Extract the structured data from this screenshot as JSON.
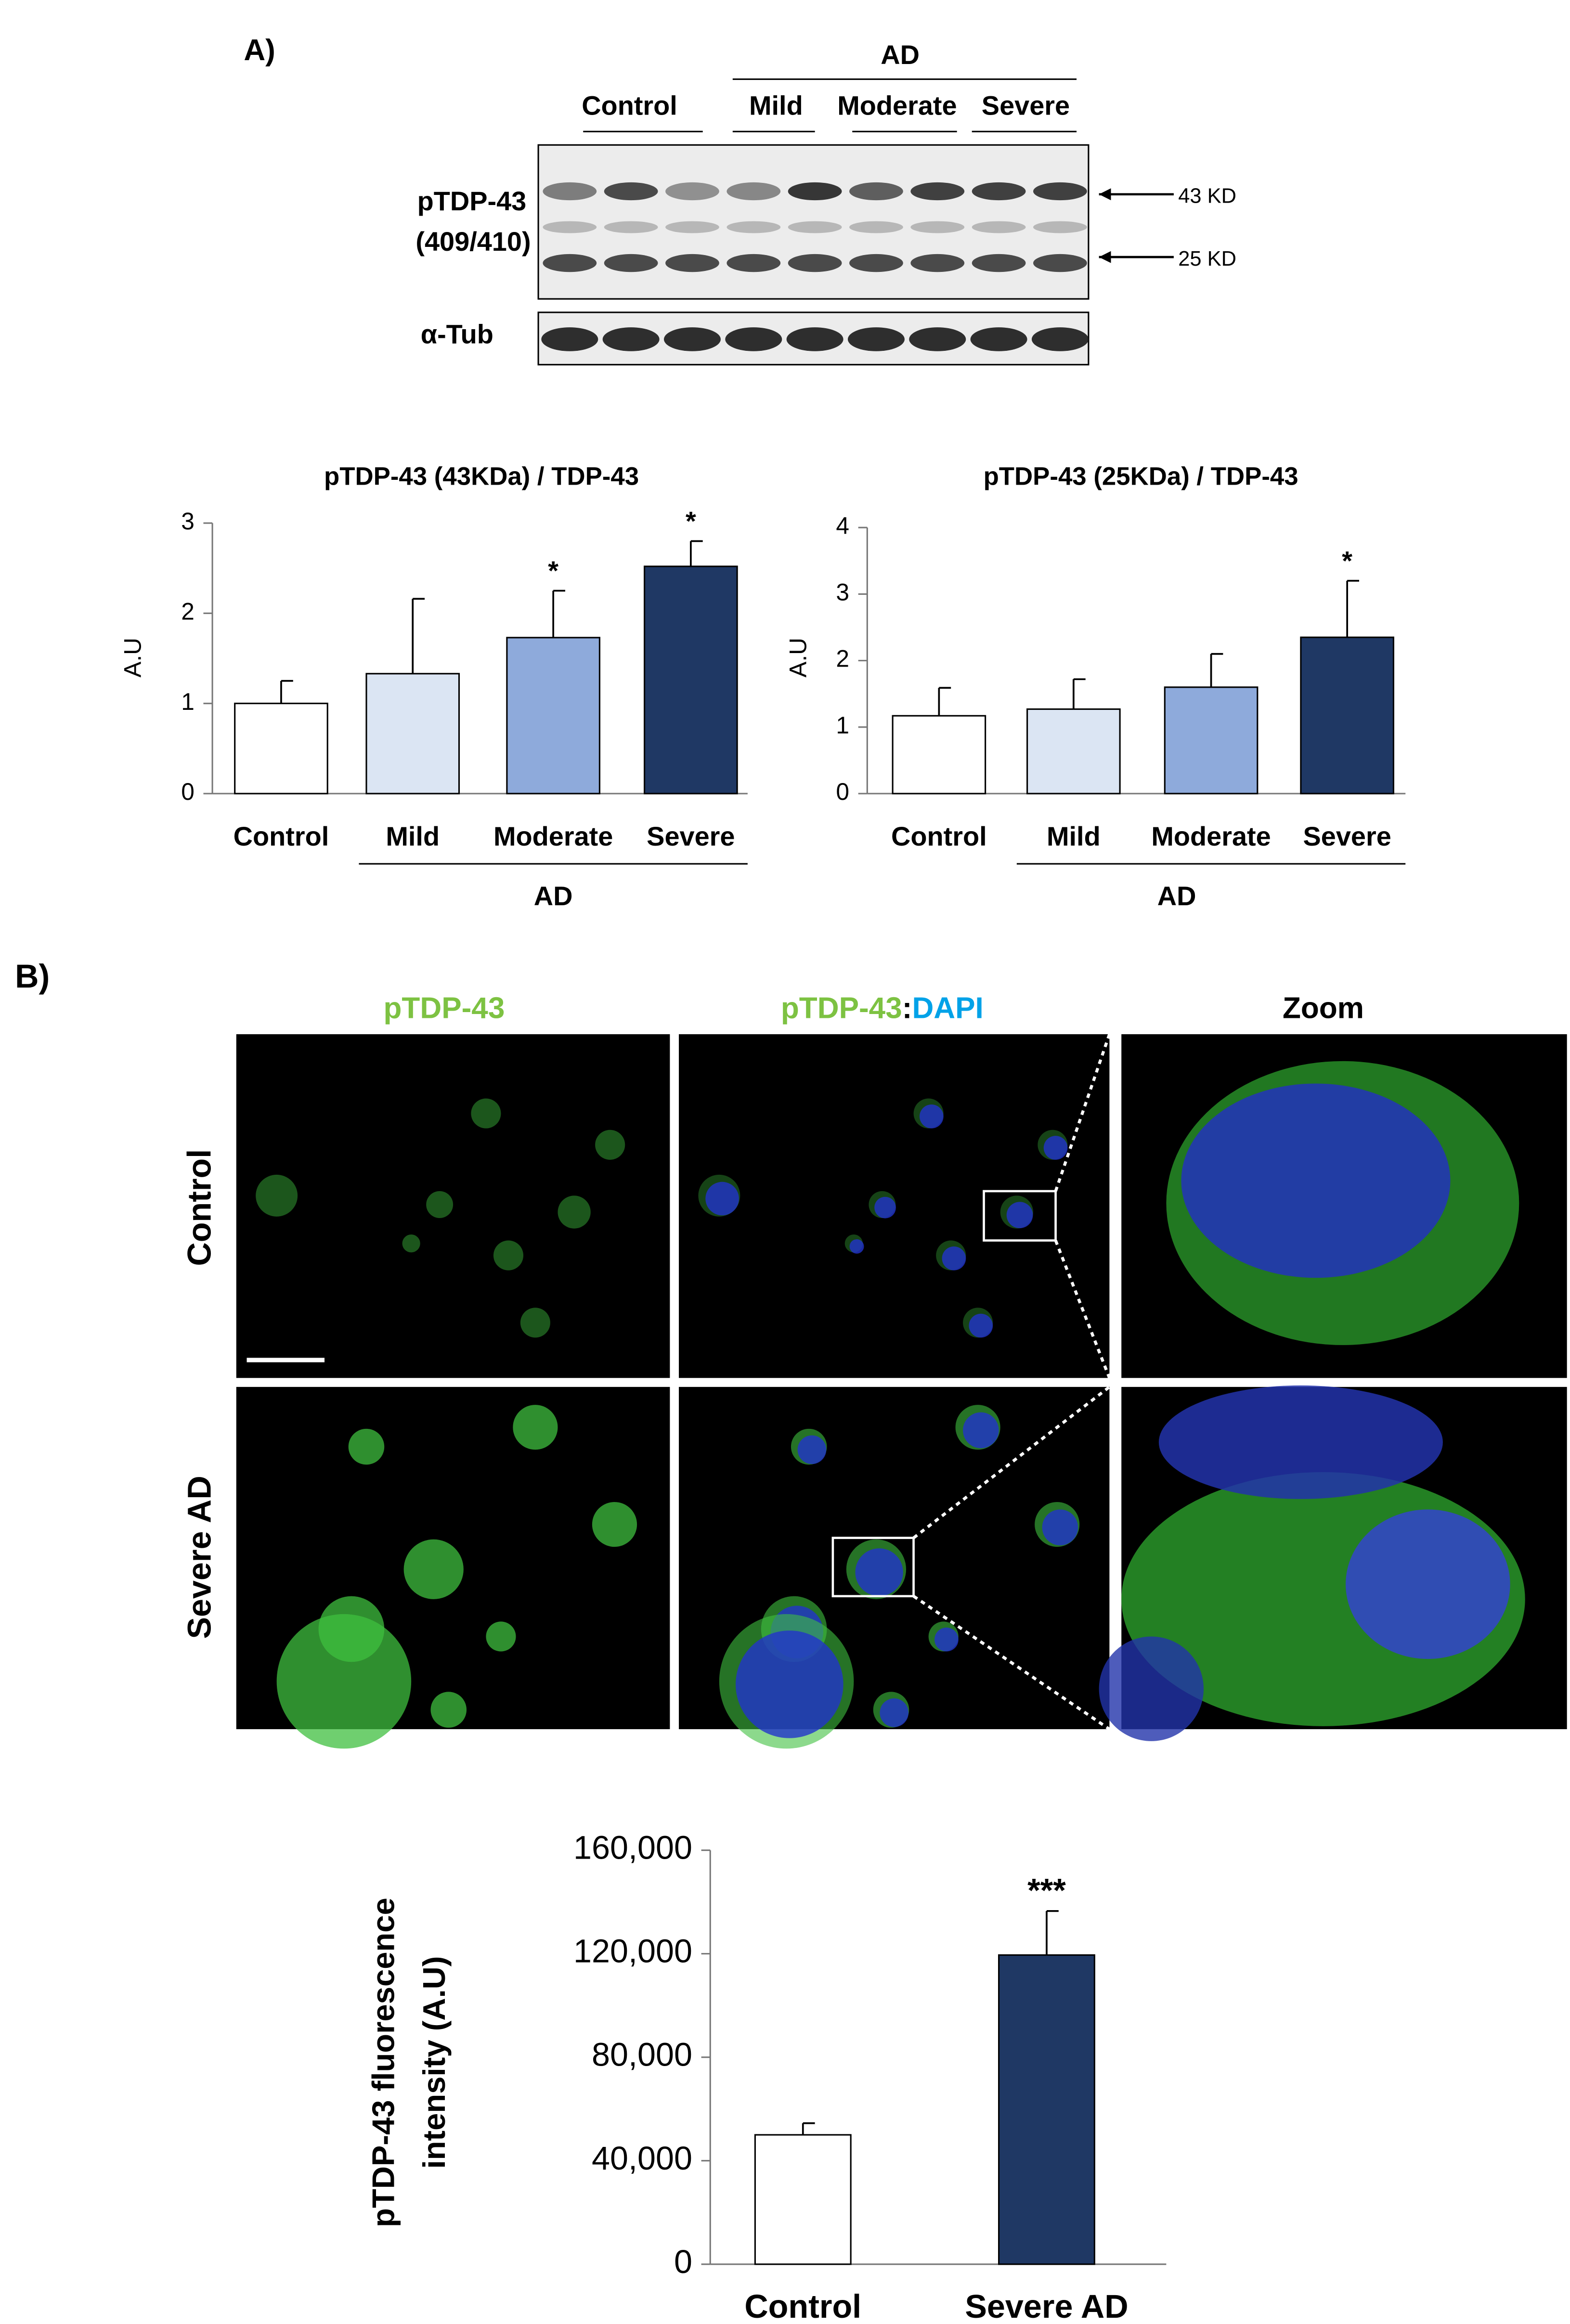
{
  "panel_a": {
    "label": "A)",
    "group_label": "AD",
    "lane_groups": [
      "Control",
      "Mild",
      "Moderate",
      "Severe"
    ],
    "rows": [
      {
        "lines": [
          "pTDP-43",
          "(409/410)"
        ]
      },
      {
        "lines": [
          "α-Tub"
        ]
      }
    ],
    "markers": [
      "43 KD",
      "25 KD"
    ]
  },
  "panel_b": {
    "label": "B)",
    "headers": {
      "first": "pTDP-43",
      "second": [
        "pTDP-43",
        ":",
        "DAPI"
      ],
      "third": "Zoom"
    },
    "row_labels": [
      "Control",
      "Severe AD"
    ]
  },
  "chart_data": [
    {
      "type": "bar",
      "title": "pTDP-43 (43KDa) / TDP-43",
      "y_label": "A.U",
      "group_label": "AD",
      "categories": [
        "Control",
        "Mild",
        "Moderate",
        "Severe"
      ],
      "values": [
        1.0,
        1.33,
        1.73,
        2.52
      ],
      "errors": [
        0.25,
        0.83,
        0.52,
        0.28
      ],
      "significance": [
        null,
        null,
        "*",
        "*"
      ],
      "colors": [
        "#ffffff",
        "#dbe5f3",
        "#8eaadb",
        "#1f3864"
      ],
      "ylim": [
        0,
        3
      ],
      "yticks": [
        0,
        1,
        2,
        3
      ],
      "grid": false
    },
    {
      "type": "bar",
      "title": "pTDP-43 (25KDa) / TDP-43",
      "y_label": "A.U",
      "group_label": "AD",
      "categories": [
        "Control",
        "Mild",
        "Moderate",
        "Severe"
      ],
      "values": [
        1.17,
        1.27,
        1.6,
        2.35
      ],
      "errors": [
        0.42,
        0.45,
        0.5,
        0.85
      ],
      "significance": [
        null,
        null,
        null,
        "*"
      ],
      "colors": [
        "#ffffff",
        "#dbe5f3",
        "#8eaadb",
        "#1f3864"
      ],
      "ylim": [
        0,
        4
      ],
      "yticks": [
        0,
        1,
        2,
        3,
        4
      ],
      "grid": false
    },
    {
      "type": "bar",
      "y_label_lines": [
        "pTDP-43  fluorescence",
        "intensity (A.U)"
      ],
      "categories": [
        "Control",
        "Severe AD"
      ],
      "values": [
        50000,
        119500
      ],
      "errors": [
        4500,
        17000
      ],
      "significance": [
        null,
        "***"
      ],
      "colors": [
        "#ffffff",
        "#1f3864"
      ],
      "ylim": [
        0,
        160000
      ],
      "yticks": [
        0,
        {
          "value": 40000,
          "label": "40,000"
        },
        {
          "value": 80000,
          "label": "80,000"
        },
        {
          "value": 120000,
          "label": "120,000"
        },
        {
          "value": 160000,
          "label": "160,000"
        }
      ],
      "grid": false
    }
  ]
}
